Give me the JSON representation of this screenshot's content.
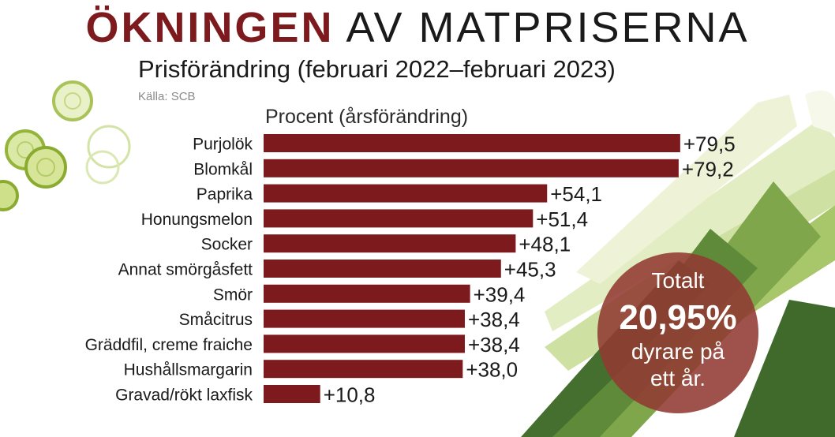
{
  "headline": {
    "strong": "ÖKNINGEN",
    "rest": "AV MATPRISERNA"
  },
  "subtitle": "Prisförändring (februari 2022–februari 2023)",
  "source": "Källa: SCB",
  "badge": {
    "line1": "Totalt",
    "value": "20,95%",
    "line2": "dyrare på",
    "line3": "ett år."
  },
  "colors": {
    "bar": "#7d1a1e",
    "headline_accent": "#7d1a1e",
    "badge": "#923a32"
  },
  "chart_data": {
    "type": "bar",
    "orientation": "horizontal",
    "xlabel": "Procent (årsförändring)",
    "categories": [
      "Purjolök",
      "Blomkål",
      "Paprika",
      "Honungsmelon",
      "Socker",
      "Annat smörgåsfett",
      "Smör",
      "Småcitrus",
      "Gräddfil, creme fraiche",
      "Hushållsmargarin",
      "Gravad/rökt laxfisk"
    ],
    "values": [
      79.5,
      79.2,
      54.1,
      51.4,
      48.1,
      45.3,
      39.4,
      38.4,
      38.4,
      38.0,
      10.8
    ],
    "value_labels": [
      "+79,5",
      "+79,2",
      "+54,1",
      "+51,4",
      "+48,1",
      "+45,3",
      "+39,4",
      "+38,4",
      "+38,4",
      "+38,0",
      "+10,8"
    ],
    "xlim": [
      0,
      80
    ],
    "grid": false,
    "legend": "none"
  }
}
